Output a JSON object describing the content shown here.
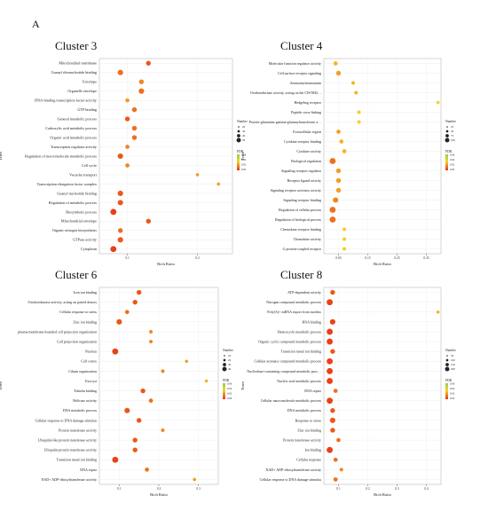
{
  "figure_label": "A",
  "chart_data": [
    {
      "type": "scatter",
      "title": "Cluster 3",
      "xlabel": "Rich Ratio",
      "ylabel": "Term",
      "xticks": [
        "0.1",
        "0.2"
      ],
      "xlim": [
        0.06,
        0.25
      ],
      "categories": [
        "Mitochondrial membrane",
        "Guanyl ribonucleotide binding",
        "Envelope",
        "Organelle envelope",
        "DNA-binding transcription factor activity",
        "GTP binding",
        "General metabolic process",
        "Carboxylic acid metabolic process",
        "Organic acid metabolic process",
        "Transcription regulator activity",
        "Regulation of macromolecule metabolic process",
        "Cell cycle",
        "Vacuolar transport",
        "Transcription elongation factor complex",
        "Guanyl nucleotide binding",
        "Regulation of metabolic process",
        "Biosynthetic process",
        "Mitochondrial envelope",
        "Organic nitrogen biosynthesis",
        "GTPase activity",
        "Cytoplasm"
      ],
      "x": [
        0.13,
        0.09,
        0.12,
        0.12,
        0.1,
        0.11,
        0.1,
        0.11,
        0.11,
        0.1,
        0.09,
        0.1,
        0.2,
        0.23,
        0.09,
        0.09,
        0.08,
        0.13,
        0.09,
        0.09,
        0.08
      ],
      "size": [
        10,
        12,
        10,
        12,
        8,
        10,
        10,
        10,
        10,
        8,
        12,
        8,
        5,
        5,
        12,
        12,
        14,
        10,
        10,
        12,
        14
      ],
      "fdr": [
        0.02,
        0.03,
        0.04,
        0.03,
        0.05,
        0.03,
        0.02,
        0.03,
        0.03,
        0.04,
        0.02,
        0.04,
        0.05,
        0.05,
        0.02,
        0.02,
        0.01,
        0.02,
        0.03,
        0.02,
        0.01
      ],
      "legend_number": {
        "title": "Number",
        "labels": [
          "20",
          "30",
          "40",
          "50"
        ]
      },
      "legend_fdr": {
        "title": "FDR",
        "labels": [
          "0.06",
          "0.04",
          "0.02",
          "0.00"
        ]
      }
    },
    {
      "type": "scatter",
      "title": "Cluster 4",
      "xlabel": "Rich Ratio",
      "ylabel": "Term",
      "xticks": [
        "0.05",
        "0.15",
        "0.25",
        "0.35"
      ],
      "xlim": [
        0.0,
        0.4
      ],
      "categories": [
        "Molecular function regulator activity",
        "Cell surface receptor signaling",
        "Ammonia/ammonium",
        "Oxidoreductase activity, acting on the CH-NH2 group",
        "Hedgehog receptor",
        "Peptide cross-linking",
        "Protein-glutamine gamma-glutamyltransferase activity",
        "Extracellular region",
        "Cytokine receptor binding",
        "Cytokine activity",
        "Biological regulation",
        "Signaling receptor regulator",
        "Receptor ligand activity",
        "Signaling receptor activator activity",
        "Signaling receptor binding",
        "Regulation of cellular process",
        "Regulation of biological process",
        "Chemokine receptor binding",
        "Chemokine activity",
        "G protein-coupled receptor"
      ],
      "x": [
        0.04,
        0.05,
        0.1,
        0.11,
        0.39,
        0.12,
        0.12,
        0.05,
        0.06,
        0.07,
        0.03,
        0.05,
        0.05,
        0.05,
        0.04,
        0.03,
        0.03,
        0.07,
        0.07,
        0.07
      ],
      "size": [
        8,
        10,
        6,
        6,
        5,
        6,
        6,
        8,
        8,
        8,
        14,
        10,
        10,
        10,
        12,
        14,
        14,
        6,
        6,
        6
      ],
      "fdr": [
        0.06,
        0.05,
        0.06,
        0.06,
        0.07,
        0.07,
        0.07,
        0.05,
        0.06,
        0.06,
        0.03,
        0.05,
        0.05,
        0.05,
        0.04,
        0.03,
        0.03,
        0.07,
        0.07,
        0.07
      ],
      "legend_number": {
        "title": "Number",
        "labels": [
          "25",
          "50",
          "75",
          "100"
        ]
      },
      "legend_fdr": {
        "title": "FDR",
        "labels": [
          "0.06",
          "0.04",
          "0.02",
          "0.00"
        ]
      }
    },
    {
      "type": "scatter",
      "title": "Cluster 6",
      "xlabel": "Rich Ratio",
      "ylabel": "Term",
      "xticks": [
        "0.1",
        "0.2",
        "0.3"
      ],
      "xlim": [
        0.05,
        0.35
      ],
      "categories": [
        "Iron ion binding",
        "Oxidoreductase activity, acting on paired donors",
        "Cellular response to stress",
        "Zinc ion binding",
        "plasma membrane bounded cell projection organization",
        "Cell projection organization",
        "Nucleus",
        "Cell cortex",
        "Cilium organization",
        "Exocyst",
        "Tubulin binding",
        "Helicase activity",
        "DNA metabolic process",
        "Cellular response to DNA damage stimulus",
        "Protein transferase activity",
        "Ubiquitin-like protein transferase activity",
        "Ubiquitin-protein transferase activity",
        "Transition metal ion binding",
        "DNA repair",
        "NAD+ ADP-ribosyltransferase activity"
      ],
      "x": [
        0.15,
        0.14,
        0.12,
        0.1,
        0.18,
        0.18,
        0.09,
        0.27,
        0.21,
        0.32,
        0.16,
        0.18,
        0.12,
        0.15,
        0.21,
        0.14,
        0.14,
        0.09,
        0.17,
        0.29
      ],
      "size": [
        10,
        10,
        8,
        12,
        6,
        6,
        14,
        5,
        6,
        5,
        10,
        8,
        12,
        10,
        6,
        10,
        10,
        14,
        8,
        5
      ],
      "fdr": [
        0.02,
        0.02,
        0.03,
        0.02,
        0.04,
        0.04,
        0.01,
        0.05,
        0.04,
        0.06,
        0.02,
        0.03,
        0.02,
        0.02,
        0.04,
        0.02,
        0.02,
        0.01,
        0.03,
        0.05
      ],
      "legend_number": {
        "title": "Number",
        "labels": [
          "10",
          "20",
          "30",
          "40"
        ]
      },
      "legend_fdr": {
        "title": "FDR",
        "labels": [
          "0.06",
          "0.04",
          "0.02",
          "0.00"
        ]
      }
    },
    {
      "type": "scatter",
      "title": "Cluster 8",
      "xlabel": "Rich Ratio",
      "ylabel": "Term",
      "xticks": [
        "0.1",
        "0.2",
        "0.3",
        "0.4"
      ],
      "xlim": [
        0.05,
        0.45
      ],
      "categories": [
        "ATP-dependent activity",
        "Nitrogen compound metabolic process",
        "Poly(A)+ mRNA export from nucleus",
        "RNA binding",
        "Heterocycle metabolic process",
        "Organic cyclic compound metabolic process",
        "Transition metal ion binding",
        "Cellular aromatic compound metabolic process",
        "Nucleobase-containing compound metabolic process",
        "Nucleic acid metabolic process",
        "DNA repair",
        "Cellular macromolecule metabolic process",
        "DNA metabolic process",
        "Response to stress",
        "Zinc ion binding",
        "Protein transferase activity",
        "Ion binding",
        "Cellular response",
        "NAD+ ADP-ribosyltransferase activity",
        "Cellular response to DNA damage stimulus"
      ],
      "x": [
        0.08,
        0.07,
        0.44,
        0.08,
        0.07,
        0.07,
        0.08,
        0.07,
        0.07,
        0.07,
        0.09,
        0.07,
        0.08,
        0.08,
        0.08,
        0.1,
        0.07,
        0.09,
        0.11,
        0.09
      ],
      "size": [
        10,
        14,
        5,
        12,
        14,
        14,
        10,
        14,
        14,
        14,
        8,
        14,
        10,
        12,
        10,
        8,
        14,
        8,
        6,
        8
      ],
      "fdr": [
        0.02,
        0.01,
        0.06,
        0.01,
        0.01,
        0.01,
        0.02,
        0.01,
        0.01,
        0.01,
        0.03,
        0.01,
        0.02,
        0.02,
        0.02,
        0.03,
        0.01,
        0.03,
        0.04,
        0.03
      ],
      "legend_number": {
        "title": "Number",
        "labels": [
          "50",
          "100",
          "150",
          "200"
        ]
      },
      "legend_fdr": {
        "title": "FDR",
        "labels": [
          "0.06",
          "0.04",
          "0.02",
          "0.00"
        ]
      }
    }
  ]
}
